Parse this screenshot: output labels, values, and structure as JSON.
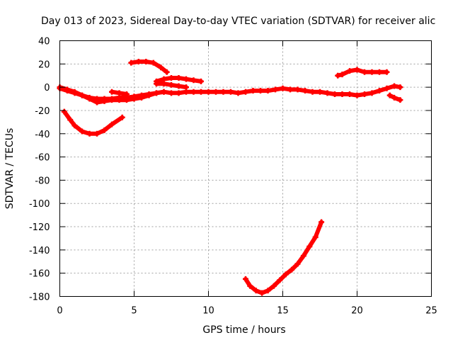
{
  "chart_data": {
    "type": "scatter",
    "title": "Day 013 of 2023, Sidereal Day-to-day VTEC variation (SDTVAR) for receiver alic",
    "xlabel": "GPS time / hours",
    "ylabel": "SDTVAR / TECUs",
    "xlim": [
      0,
      25
    ],
    "ylim": [
      -180,
      40
    ],
    "xticks": [
      0,
      5,
      10,
      15,
      20,
      25
    ],
    "yticks": [
      40,
      20,
      0,
      -20,
      -40,
      -60,
      -80,
      -100,
      -120,
      -140,
      -160,
      -180
    ],
    "grid": true,
    "color": "#ff0000",
    "series": [
      {
        "x": [
          0.0,
          0.5,
          1.0,
          1.5,
          2.0,
          2.5,
          3.0,
          3.5,
          4.0,
          4.5,
          5.0,
          5.5,
          6.0,
          6.5,
          7.0,
          7.5,
          8.0,
          8.5,
          9.0,
          9.5,
          10.0,
          10.5,
          11.0,
          11.5,
          12.0,
          12.5,
          13.0,
          13.5,
          14.0,
          14.5,
          15.0,
          15.5,
          16.0,
          16.5,
          17.0,
          17.5,
          18.0,
          18.5,
          19.0,
          19.5,
          20.0,
          20.5,
          21.0,
          21.5,
          22.0,
          22.5,
          22.9
        ],
        "y": [
          -1,
          -3,
          -5,
          -7,
          -9,
          -10,
          -10,
          -10,
          -9,
          -9,
          -8,
          -7,
          -6,
          -5,
          -4,
          -5,
          -5,
          -4,
          -4,
          -4,
          -4,
          -4,
          -4,
          -4,
          -5,
          -4,
          -3,
          -3,
          -3,
          -2,
          -1,
          -2,
          -2,
          -3,
          -4,
          -4,
          -5,
          -6,
          -6,
          -6,
          -7,
          -6,
          -5,
          -3,
          -1,
          1,
          0
        ]
      },
      {
        "x": [
          0.0,
          0.5,
          1.0,
          1.5,
          2.0,
          2.5,
          3.0,
          3.5,
          4.0,
          4.5,
          5.0,
          5.5,
          6.0,
          6.5,
          7.0
        ],
        "y": [
          0,
          -2,
          -4,
          -7,
          -10,
          -13,
          -12,
          -11,
          -11,
          -11,
          -10,
          -9,
          -7,
          -5,
          -4
        ]
      },
      {
        "x": [
          0.3,
          0.7,
          1.0,
          1.5,
          2.0,
          2.5,
          3.0,
          3.5,
          4.2
        ],
        "y": [
          -21,
          -28,
          -33,
          -38,
          -40,
          -40,
          -37,
          -32,
          -26
        ]
      },
      {
        "x": [
          3.5,
          4.0,
          4.5
        ],
        "y": [
          -4,
          -5,
          -6
        ]
      },
      {
        "x": [
          4.8,
          5.3,
          5.8,
          6.3,
          6.8,
          7.2
        ],
        "y": [
          21,
          22,
          22,
          21,
          17,
          13
        ]
      },
      {
        "x": [
          6.5,
          7.0,
          7.5,
          8.0,
          8.5,
          9.0,
          9.5
        ],
        "y": [
          5,
          7,
          8,
          8,
          7,
          6,
          5
        ]
      },
      {
        "x": [
          6.5,
          7.0,
          7.5,
          8.0,
          8.5
        ],
        "y": [
          3,
          3,
          2,
          1,
          0
        ]
      },
      {
        "x": [
          12.5,
          12.8,
          13.2,
          13.6,
          14.0,
          14.4,
          14.8,
          15.2,
          15.6,
          16.0,
          16.4,
          16.8,
          17.2,
          17.6
        ],
        "y": [
          -165,
          -171,
          -175,
          -177,
          -175,
          -171,
          -166,
          -161,
          -157,
          -152,
          -145,
          -137,
          -129,
          -116
        ]
      },
      {
        "x": [
          18.7,
          19.0,
          19.5,
          20.0,
          20.5,
          21.0,
          21.5,
          22.0
        ],
        "y": [
          10,
          11,
          14,
          15,
          13,
          13,
          13,
          13
        ]
      },
      {
        "x": [
          22.2,
          22.5,
          22.9
        ],
        "y": [
          -7,
          -9,
          -11
        ]
      }
    ]
  }
}
